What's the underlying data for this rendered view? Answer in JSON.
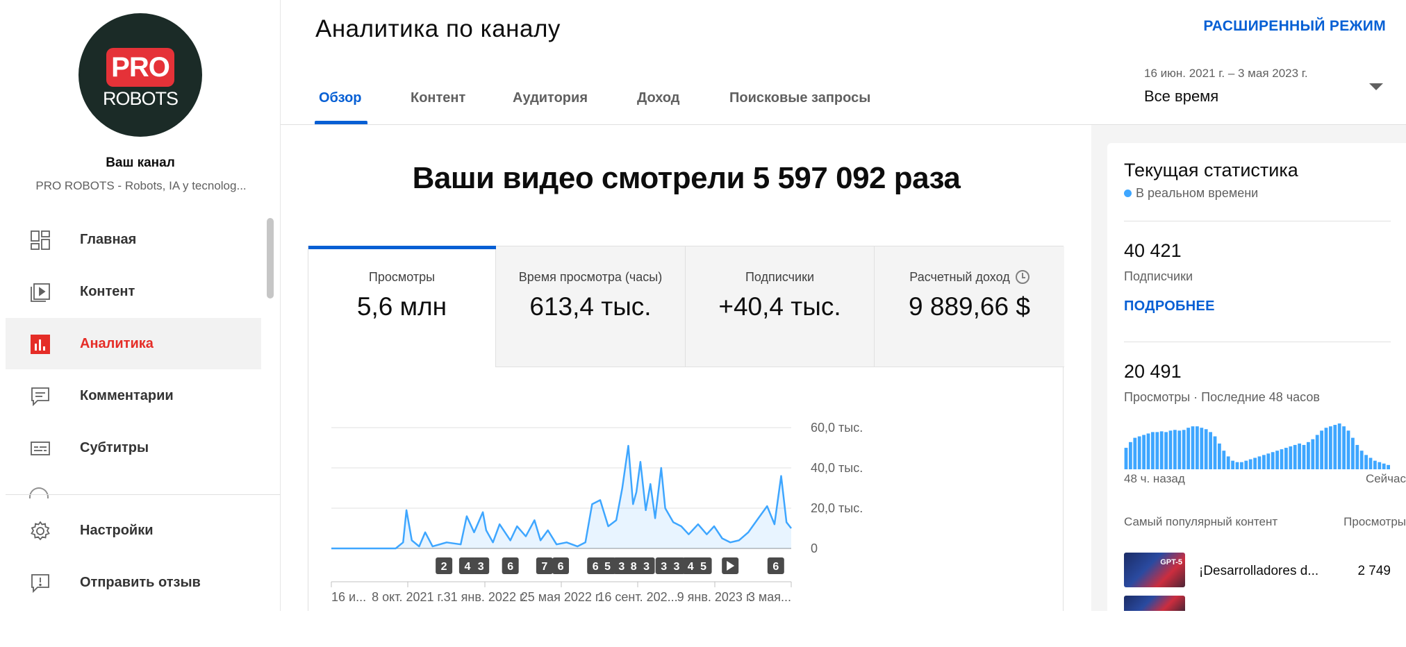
{
  "sidebar": {
    "avatar": {
      "pro": "PRO",
      "robots": "ROBOTS"
    },
    "your_channel": "Ваш канал",
    "channel_name": "PRO ROBOTS - Robots, IA y tecnolog...",
    "items": [
      {
        "label": "Главная",
        "icon": "dashboard-icon"
      },
      {
        "label": "Контент",
        "icon": "content-icon"
      },
      {
        "label": "Аналитика",
        "icon": "analytics-icon",
        "active": true
      },
      {
        "label": "Комментарии",
        "icon": "comments-icon"
      },
      {
        "label": "Субтитры",
        "icon": "subtitles-icon"
      }
    ],
    "bottom_items": [
      {
        "label": "Настройки",
        "icon": "gear-icon"
      },
      {
        "label": "Отправить отзыв",
        "icon": "feedback-icon"
      }
    ]
  },
  "header": {
    "title": "Аналитика по каналу",
    "advanced_mode": "РАСШИРЕННЫЙ РЕЖИМ",
    "tabs": [
      {
        "label": "Обзор",
        "active": true
      },
      {
        "label": "Контент"
      },
      {
        "label": "Аудитория"
      },
      {
        "label": "Доход"
      },
      {
        "label": "Поисковые запросы"
      }
    ],
    "date_range": "16 июн. 2021 г. – 3 мая 2023 г.",
    "period": "Все время"
  },
  "main": {
    "headline": "Ваши видео смотрели 5 597 092 раза",
    "metrics": [
      {
        "label": "Просмотры",
        "value": "5,6 млн",
        "active": true
      },
      {
        "label": "Время просмотра (часы)",
        "value": "613,4 тыс."
      },
      {
        "label": "Подписчики",
        "value": "+40,4 тыс."
      },
      {
        "label": "Расчетный доход",
        "value": "9 889,66 $"
      }
    ]
  },
  "chart_data": {
    "type": "area",
    "title": "",
    "xlabel": "",
    "ylabel": "",
    "y_ticks": [
      "60,0 тыс.",
      "40,0 тыс.",
      "20,0 тыс.",
      "0"
    ],
    "ylim": [
      0,
      60000
    ],
    "x_tick_labels": [
      "16 и...",
      "8 окт. 2021 г.",
      "31 янв. 2022 г.",
      "25 мая 2022 г.",
      "16 сент. 202...",
      "9 янв. 2023 г.",
      "3 мая..."
    ],
    "x_tick_dates": [
      "2021-06-16",
      "2021-10-08",
      "2022-01-31",
      "2022-05-25",
      "2022-09-16",
      "2023-01-09",
      "2023-05-03"
    ],
    "x_start": "2021-06-16",
    "x_end": "2023-05-03",
    "color": "#3ea6ff",
    "series": [
      {
        "x": [
          "2021-06-16",
          "2021-07-20",
          "2021-08-25",
          "2021-09-20",
          "2021-10-01",
          "2021-10-06",
          "2021-10-14",
          "2021-10-25",
          "2021-11-03",
          "2021-11-14",
          "2021-12-05",
          "2021-12-26",
          "2022-01-04",
          "2022-01-15",
          "2022-01-28",
          "2022-02-02",
          "2022-02-12",
          "2022-02-22",
          "2022-03-10",
          "2022-03-20",
          "2022-04-02",
          "2022-04-15",
          "2022-04-24",
          "2022-05-05",
          "2022-05-18",
          "2022-06-02",
          "2022-06-18",
          "2022-06-30",
          "2022-07-10",
          "2022-07-22",
          "2022-08-03",
          "2022-08-15",
          "2022-08-24",
          "2022-09-02",
          "2022-09-09",
          "2022-09-14",
          "2022-09-20",
          "2022-09-28",
          "2022-10-05",
          "2022-10-12",
          "2022-10-21",
          "2022-10-27",
          "2022-11-08",
          "2022-11-20",
          "2022-12-01",
          "2022-12-15",
          "2022-12-28",
          "2023-01-08",
          "2023-01-20",
          "2023-02-01",
          "2023-02-14",
          "2023-02-28",
          "2023-03-15",
          "2023-03-28",
          "2023-04-08",
          "2023-04-18",
          "2023-04-26",
          "2023-05-03"
        ],
        "y": [
          0,
          0,
          0,
          0,
          3000,
          19000,
          4000,
          1000,
          8000,
          1000,
          3000,
          2000,
          16000,
          8000,
          18000,
          9000,
          3000,
          12000,
          4000,
          11000,
          6000,
          14000,
          4000,
          9000,
          2000,
          3000,
          1000,
          3000,
          22000,
          24000,
          11000,
          14000,
          30000,
          51000,
          22000,
          28000,
          43000,
          19000,
          32000,
          15000,
          40000,
          20000,
          13000,
          11000,
          7000,
          12000,
          7000,
          11000,
          5000,
          3000,
          4000,
          8000,
          15000,
          21000,
          12000,
          36000,
          13000,
          10000
        ]
      }
    ],
    "markers": [
      {
        "label": "2",
        "x": "2021-12-01"
      },
      {
        "label": "4",
        "x": "2022-01-05"
      },
      {
        "label": "3",
        "x": "2022-01-25"
      },
      {
        "label": "6",
        "x": "2022-03-10"
      },
      {
        "label": "7",
        "x": "2022-04-30"
      },
      {
        "label": "6",
        "x": "2022-05-24"
      },
      {
        "label": "6",
        "x": "2022-07-15"
      },
      {
        "label": "5",
        "x": "2022-08-02"
      },
      {
        "label": "3",
        "x": "2022-08-23"
      },
      {
        "label": "8",
        "x": "2022-09-10"
      },
      {
        "label": "3",
        "x": "2022-09-29"
      },
      {
        "label": "3",
        "x": "2022-10-25"
      },
      {
        "label": "3",
        "x": "2022-11-13"
      },
      {
        "label": "4",
        "x": "2022-12-04"
      },
      {
        "label": "5",
        "x": "2022-12-23"
      },
      {
        "label": "",
        "x": "2023-02-01",
        "icon": "play-icon"
      },
      {
        "label": "6",
        "x": "2023-04-10"
      }
    ]
  },
  "realtime": {
    "title": "Текущая статистика",
    "live_label": "В реальном времени",
    "subscribers_value": "40 421",
    "subscribers_label": "Подписчики",
    "details_link": "ПОДРОБНЕЕ",
    "views_value": "20 491",
    "views_label": "Просмотры · Последние 48 часов",
    "axis_left": "48 ч. назад",
    "axis_right": "Сейчас",
    "popular_label": "Самый популярный контент",
    "views_col_label": "Просмотры",
    "top_video": {
      "title": "¡Desarrolladores d...",
      "views": "2 749",
      "thumb_text": "GPT-5"
    },
    "hourly_views": [
      30,
      38,
      44,
      46,
      48,
      50,
      52,
      52,
      53,
      52,
      54,
      55,
      54,
      55,
      58,
      60,
      60,
      58,
      56,
      52,
      46,
      36,
      26,
      18,
      12,
      10,
      10,
      12,
      14,
      16,
      18,
      20,
      22,
      24,
      26,
      28,
      30,
      32,
      34,
      36,
      34,
      38,
      42,
      48,
      54,
      58,
      60,
      62,
      64,
      60,
      54,
      44,
      34,
      26,
      20,
      16,
      12,
      10,
      8,
      6
    ]
  }
}
